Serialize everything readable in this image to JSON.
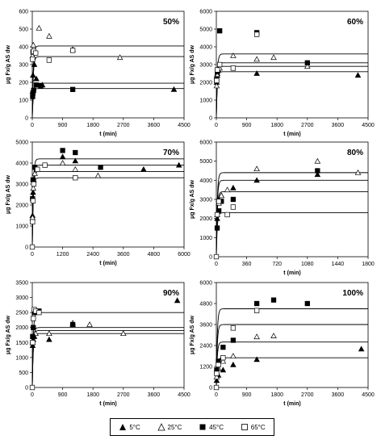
{
  "chart_data": [
    {
      "type": "scatter",
      "panel_label": "50%",
      "xlabel": "t (min)",
      "ylabel": "μg Fx/g AS dw",
      "xlim": [
        0,
        4500
      ],
      "ylim": [
        0,
        600
      ],
      "x_ticks": [
        "0",
        "900",
        "1800",
        "2700",
        "3600",
        "4500"
      ],
      "y_ticks": [
        "0",
        "100",
        "200",
        "300",
        "400",
        "500",
        "600"
      ],
      "series": [
        {
          "name": "5°C",
          "marker": "triangle-filled",
          "points": [
            [
              10,
              150
            ],
            [
              20,
              240
            ],
            [
              60,
              300
            ],
            [
              120,
              220
            ],
            [
              300,
              185
            ],
            [
              4200,
              160
            ]
          ],
          "fit_plateau": 165
        },
        {
          "name": "25°C",
          "marker": "triangle-open",
          "points": [
            [
              10,
              350
            ],
            [
              30,
              410
            ],
            [
              200,
              505
            ],
            [
              500,
              460
            ],
            [
              1200,
              385
            ],
            [
              2600,
              340
            ]
          ],
          "fit_plateau": 405
        },
        {
          "name": "45°C",
          "marker": "square-filled",
          "points": [
            [
              10,
              120
            ],
            [
              20,
              140
            ],
            [
              40,
              155
            ],
            [
              120,
              185
            ],
            [
              250,
              180
            ],
            [
              1200,
              160
            ]
          ],
          "fit_plateau": 195
        },
        {
          "name": "65°C",
          "marker": "square-open",
          "points": [
            [
              10,
              330
            ],
            [
              20,
              370
            ],
            [
              40,
              375
            ],
            [
              100,
              365
            ],
            [
              500,
              325
            ],
            [
              1200,
              380
            ]
          ],
          "fit_plateau": 345
        }
      ]
    },
    {
      "type": "scatter",
      "panel_label": "60%",
      "xlabel": "t (min)",
      "ylabel": "μg Fx/g AS dw",
      "xlim": [
        0,
        4500
      ],
      "ylim": [
        0,
        6000
      ],
      "x_ticks": [
        "0",
        "900",
        "1800",
        "2700",
        "3600",
        "4500"
      ],
      "y_ticks": [
        "0",
        "1000",
        "2000",
        "3000",
        "4000",
        "5000",
        "6000"
      ],
      "series": [
        {
          "name": "5°C",
          "marker": "triangle-filled",
          "points": [
            [
              10,
              2000
            ],
            [
              30,
              2500
            ],
            [
              60,
              2700
            ],
            [
              1200,
              2500
            ],
            [
              4200,
              2400
            ]
          ],
          "fit_plateau": 2600
        },
        {
          "name": "25°C",
          "marker": "triangle-open",
          "points": [
            [
              10,
              1800
            ],
            [
              30,
              2400
            ],
            [
              100,
              2800
            ],
            [
              500,
              3500
            ],
            [
              1200,
              3300
            ],
            [
              1700,
              3400
            ],
            [
              2700,
              2900
            ]
          ],
          "fit_plateau": 3100
        },
        {
          "name": "45°C",
          "marker": "square-filled",
          "points": [
            [
              10,
              2200
            ],
            [
              30,
              2600
            ],
            [
              100,
              4900
            ],
            [
              1200,
              4800
            ],
            [
              2700,
              3100
            ]
          ],
          "fit_plateau": 3600
        },
        {
          "name": "65°C",
          "marker": "square-open",
          "points": [
            [
              10,
              2100
            ],
            [
              30,
              2700
            ],
            [
              100,
              3000
            ],
            [
              500,
              2800
            ],
            [
              1200,
              4700
            ]
          ],
          "fit_plateau": 2900
        }
      ]
    },
    {
      "type": "scatter",
      "panel_label": "70%",
      "xlabel": "t (min)",
      "ylabel": "μg Fx/g AS dw",
      "xlim": [
        0,
        6000
      ],
      "ylim": [
        0,
        5000
      ],
      "x_ticks": [
        "0",
        "1200",
        "2400",
        "3600",
        "4800",
        "6000"
      ],
      "y_ticks": [
        "0",
        "1000",
        "2000",
        "3000",
        "4000",
        "5000"
      ],
      "series": [
        {
          "name": "5°C",
          "marker": "triangle-filled",
          "points": [
            [
              10,
              1500
            ],
            [
              30,
              2600
            ],
            [
              60,
              3200
            ],
            [
              1200,
              4300
            ],
            [
              1700,
              4100
            ],
            [
              4400,
              3700
            ],
            [
              5800,
              3900
            ]
          ],
          "fit_plateau": 3900
        },
        {
          "name": "25°C",
          "marker": "triangle-open",
          "points": [
            [
              10,
              1400
            ],
            [
              40,
              2800
            ],
            [
              100,
              3500
            ],
            [
              1200,
              4000
            ],
            [
              1700,
              3700
            ],
            [
              2600,
              3400
            ]
          ],
          "fit_plateau": 3600
        },
        {
          "name": "45°C",
          "marker": "square-filled",
          "points": [
            [
              10,
              2300
            ],
            [
              30,
              3200
            ],
            [
              100,
              3800
            ],
            [
              1200,
              4600
            ],
            [
              1700,
              4500
            ],
            [
              2700,
              3800
            ]
          ],
          "fit_plateau": 4200
        },
        {
          "name": "65°C",
          "marker": "square-open",
          "points": [
            [
              0,
              0
            ],
            [
              10,
              1200
            ],
            [
              30,
              2200
            ],
            [
              60,
              3000
            ],
            [
              200,
              3700
            ],
            [
              500,
              3900
            ],
            [
              1700,
              3300
            ]
          ],
          "fit_plateau": 3300
        }
      ]
    },
    {
      "type": "scatter",
      "panel_label": "80%",
      "xlabel": "t (min)",
      "ylabel": "μg Fx/g AS dw",
      "xlim": [
        0,
        1800
      ],
      "ylim": [
        0,
        6000
      ],
      "x_ticks": [
        "0",
        "360",
        "720",
        "1080",
        "1440",
        "1800"
      ],
      "y_ticks": [
        "0",
        "1000",
        "2000",
        "3000",
        "4000",
        "5000",
        "6000"
      ],
      "series": [
        {
          "name": "5°C",
          "marker": "triangle-filled",
          "points": [
            [
              10,
              2000
            ],
            [
              30,
              3000
            ],
            [
              60,
              3200
            ],
            [
              200,
              3600
            ],
            [
              480,
              4000
            ],
            [
              1200,
              4300
            ]
          ],
          "fit_plateau": 4000
        },
        {
          "name": "25°C",
          "marker": "triangle-open",
          "points": [
            [
              10,
              2200
            ],
            [
              30,
              2800
            ],
            [
              60,
              3200
            ],
            [
              130,
              3500
            ],
            [
              480,
              4600
            ],
            [
              1200,
              5000
            ],
            [
              1680,
              4400
            ]
          ],
          "fit_plateau": 4400
        },
        {
          "name": "45°C",
          "marker": "square-filled",
          "points": [
            [
              10,
              1500
            ],
            [
              30,
              2400
            ],
            [
              60,
              2900
            ],
            [
              200,
              3000
            ],
            [
              1200,
              4500
            ]
          ],
          "fit_plateau": 3400
        },
        {
          "name": "65°C",
          "marker": "square-open",
          "points": [
            [
              0,
              0
            ],
            [
              10,
              2200
            ],
            [
              30,
              2900
            ],
            [
              130,
              2200
            ],
            [
              200,
              2600
            ]
          ],
          "fit_plateau": 2300
        }
      ]
    },
    {
      "type": "scatter",
      "panel_label": "90%",
      "xlabel": "t (min)",
      "ylabel": "μg Fx/g AS dw",
      "xlim": [
        0,
        4500
      ],
      "ylim": [
        0,
        3500
      ],
      "x_ticks": [
        "0",
        "900",
        "1800",
        "2700",
        "3600",
        "4500"
      ],
      "y_ticks": [
        "0",
        "500",
        "1000",
        "1500",
        "2000",
        "2500",
        "3000",
        "3500"
      ],
      "series": [
        {
          "name": "5°C",
          "marker": "triangle-filled",
          "points": [
            [
              10,
              1400
            ],
            [
              30,
              1600
            ],
            [
              60,
              1700
            ],
            [
              500,
              1600
            ],
            [
              1200,
              2100
            ],
            [
              4300,
              2900
            ]
          ],
          "fit_plateau": 1800
        },
        {
          "name": "25°C",
          "marker": "triangle-open",
          "points": [
            [
              10,
              1500
            ],
            [
              30,
              1700
            ],
            [
              100,
              1800
            ],
            [
              500,
              1800
            ],
            [
              1200,
              2150
            ],
            [
              1700,
              2100
            ],
            [
              2700,
              1800
            ]
          ],
          "fit_plateau": 1900
        },
        {
          "name": "45°C",
          "marker": "square-filled",
          "points": [
            [
              10,
              1700
            ],
            [
              30,
              2000
            ],
            [
              60,
              2500
            ],
            [
              200,
              2550
            ],
            [
              1200,
              2100
            ]
          ],
          "fit_plateau": 2000
        },
        {
          "name": "65°C",
          "marker": "square-open",
          "points": [
            [
              0,
              0
            ],
            [
              10,
              1500
            ],
            [
              30,
              2300
            ],
            [
              60,
              2600
            ],
            [
              100,
              2550
            ],
            [
              200,
              2500
            ]
          ],
          "fit_plateau": 2500
        }
      ]
    },
    {
      "type": "scatter",
      "panel_label": "100%",
      "xlabel": "t (min)",
      "ylabel": "μg Fx/g AS dw",
      "xlim": [
        0,
        4500
      ],
      "ylim": [
        0,
        6000
      ],
      "x_ticks": [
        "0",
        "900",
        "1800",
        "2700",
        "3600",
        "4500"
      ],
      "y_ticks": [
        "0",
        "1200",
        "2400",
        "3600",
        "4800",
        "6000"
      ],
      "series": [
        {
          "name": "5°C",
          "marker": "triangle-filled",
          "points": [
            [
              10,
              400
            ],
            [
              60,
              700
            ],
            [
              200,
              1000
            ],
            [
              500,
              1300
            ],
            [
              1200,
              1600
            ],
            [
              4300,
              2200
            ]
          ],
          "fit_plateau": 1700
        },
        {
          "name": "25°C",
          "marker": "triangle-open",
          "points": [
            [
              10,
              600
            ],
            [
              60,
              1100
            ],
            [
              200,
              1500
            ],
            [
              500,
              1800
            ],
            [
              1200,
              2900
            ],
            [
              1700,
              2950
            ]
          ],
          "fit_plateau": 2600
        },
        {
          "name": "45°C",
          "marker": "square-filled",
          "points": [
            [
              10,
              1000
            ],
            [
              60,
              1500
            ],
            [
              200,
              2300
            ],
            [
              500,
              2700
            ],
            [
              1200,
              4800
            ],
            [
              1700,
              5000
            ],
            [
              2700,
              4800
            ]
          ],
          "fit_plateau": 4500
        },
        {
          "name": "65°C",
          "marker": "square-open",
          "points": [
            [
              0,
              0
            ],
            [
              10,
              800
            ],
            [
              60,
              1300
            ],
            [
              200,
              1700
            ],
            [
              500,
              3400
            ],
            [
              1200,
              4400
            ]
          ],
          "fit_plateau": 3600
        }
      ]
    }
  ],
  "legend": [
    {
      "label": "5°C",
      "marker": "triangle-filled"
    },
    {
      "label": "25°C",
      "marker": "triangle-open"
    },
    {
      "label": "45°C",
      "marker": "square-filled"
    },
    {
      "label": "65°C",
      "marker": "square-open"
    }
  ]
}
